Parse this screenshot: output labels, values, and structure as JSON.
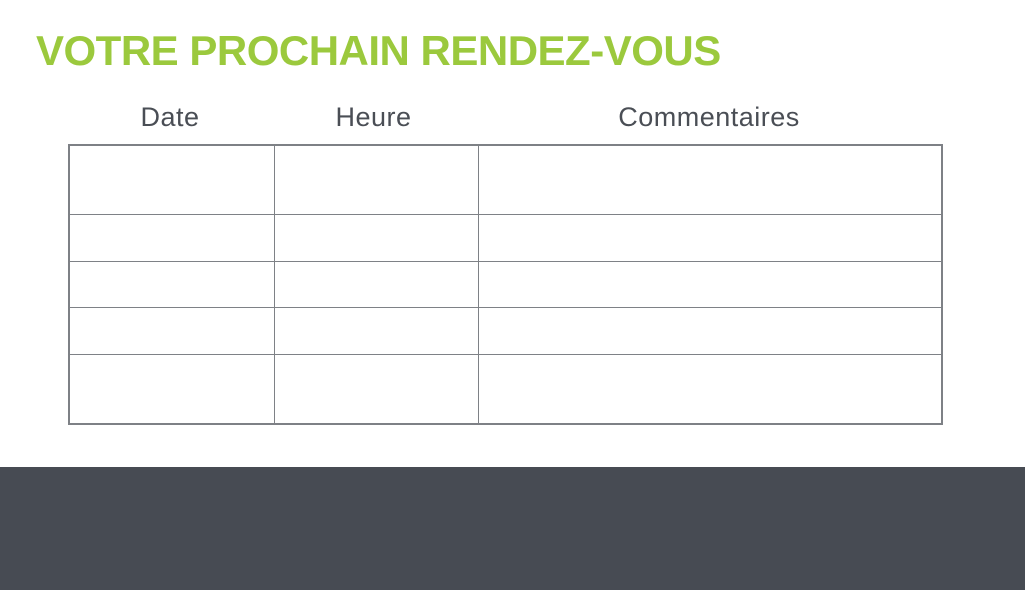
{
  "title": {
    "text": "VOTRE PROCHAIN RENDEZ-VOUS",
    "color": "#9BC93D"
  },
  "table": {
    "headers": [
      {
        "label": "Date"
      },
      {
        "label": "Heure"
      },
      {
        "label": "Commentaires"
      }
    ],
    "rows": [
      [
        "",
        "",
        ""
      ],
      [
        "",
        "",
        ""
      ],
      [
        "",
        "",
        ""
      ],
      [
        "",
        "",
        ""
      ],
      [
        "",
        "",
        ""
      ]
    ],
    "border_color": "#7E8186"
  },
  "colors": {
    "header_text": "#4A4E55",
    "footer_background": "#474B53",
    "page_background": "#ffffff"
  }
}
